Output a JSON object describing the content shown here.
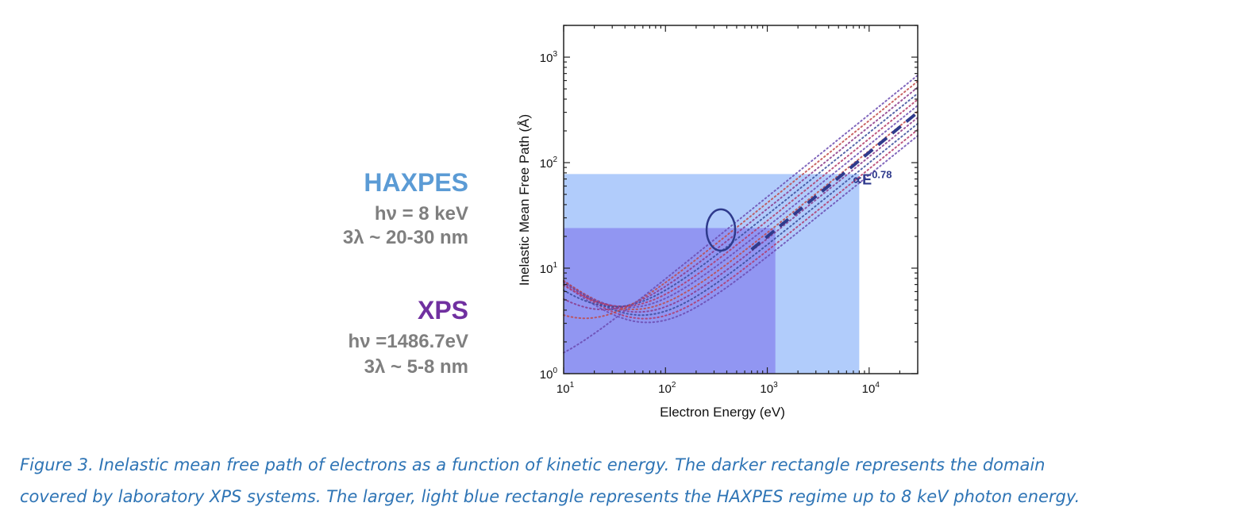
{
  "side_labels": {
    "haxpes": {
      "title": "HAXPES",
      "line1": "hν = 8 keV",
      "line2": "3λ ~ 20-30 nm"
    },
    "xps": {
      "title": "XPS",
      "line1": "hν =1486.7eV",
      "line2": "3λ ~ 5-8 nm"
    }
  },
  "chart_data": {
    "type": "scatter",
    "xscale": "log",
    "yscale": "log",
    "xlabel": "Electron Energy (eV)",
    "ylabel": "Inelastic Mean Free Path (Å)",
    "xlim": [
      10,
      30000
    ],
    "ylim": [
      1,
      2000
    ],
    "xticks": [
      {
        "value": 10,
        "base": "10",
        "exp": "1"
      },
      {
        "value": 100,
        "base": "10",
        "exp": "2"
      },
      {
        "value": 1000,
        "base": "10",
        "exp": "3"
      },
      {
        "value": 10000,
        "base": "10",
        "exp": "4"
      }
    ],
    "yticks": [
      {
        "value": 1,
        "base": "10",
        "exp": "0"
      },
      {
        "value": 10,
        "base": "10",
        "exp": "1"
      },
      {
        "value": 100,
        "base": "10",
        "exp": "2"
      },
      {
        "value": 1000,
        "base": "10",
        "exp": "3"
      }
    ],
    "regions": [
      {
        "name": "HAXPES",
        "x": [
          10,
          8000
        ],
        "y": [
          1,
          78
        ],
        "color": "#a9c7fb"
      },
      {
        "name": "XPS",
        "x": [
          10,
          1200
        ],
        "y": [
          1,
          24
        ],
        "color": "#8c8cf0"
      }
    ],
    "series_band": {
      "x_min": 10,
      "min_energy": [
        40,
        70
      ],
      "min_imfp": [
        3.3,
        6.5
      ],
      "high_slope": 0.78,
      "imfp_at_30keV": [
        180,
        1000
      ],
      "colors": [
        "#6b4bb0",
        "#b03a6a",
        "#3a4a9a",
        "#8a3a8a",
        "#c04a4a"
      ]
    },
    "fit_line": {
      "label_prefix": "∝E",
      "label_exp": "0.78",
      "slope": 0.78,
      "points": [
        [
          700,
          15
        ],
        [
          30000,
          300
        ]
      ],
      "color": "#2e3a8c"
    },
    "annotation": {
      "shape": "ellipse",
      "center": [
        350,
        23
      ]
    }
  },
  "caption": {
    "line1": "Figure 3. Inelastic mean free path of electrons as a function of kinetic energy. The darker rectangle represents the domain",
    "line2": "covered by laboratory XPS systems. The larger, light blue rectangle represents the HAXPES regime up to 8 keV photon energy."
  }
}
